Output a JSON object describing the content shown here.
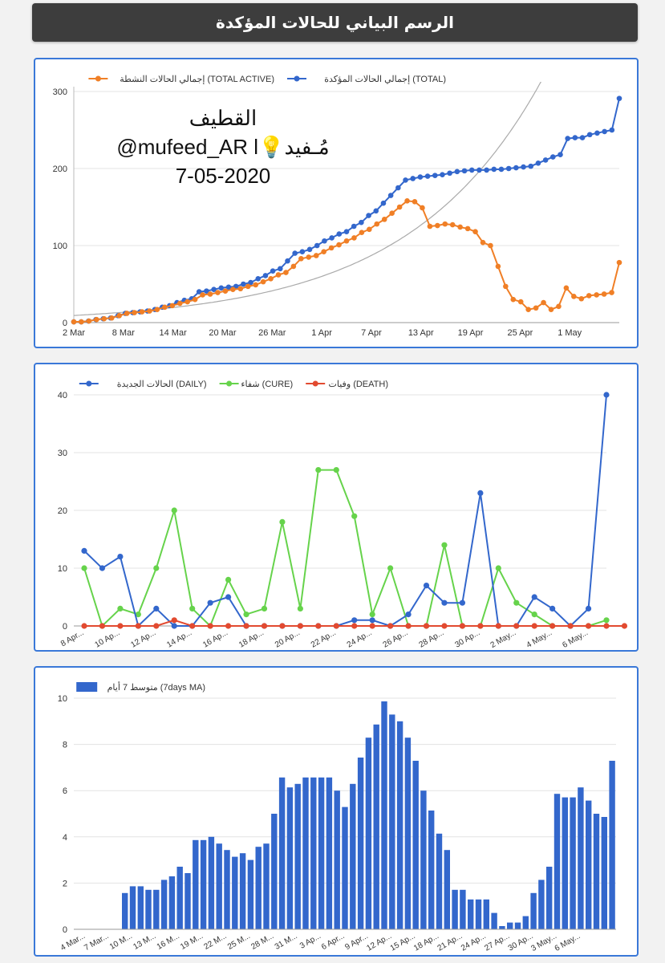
{
  "header": {
    "title": "الرسم البياني للحالات المؤكدة"
  },
  "watermark": {
    "city": "القطيف",
    "handle": "@mufeed_AR l💡مُـفيد",
    "date": "7-05-2020"
  },
  "colors": {
    "blue": "#3367cc",
    "orange": "#f07f26",
    "green": "#66d34b",
    "red": "#e24a30",
    "gridline": "#e3e3e3",
    "frame": "#3a78d8"
  },
  "chart_data": [
    {
      "type": "line",
      "legend": [
        {
          "label": "إجمالي الحالات المؤكدة (TOTAL)",
          "color": "#3367cc"
        },
        {
          "label": "إجمالي الحالات النشطة (TOTAL ACTIVE)",
          "color": "#f07f26"
        }
      ],
      "x_tick_labels": [
        "2 Mar",
        "8 Mar",
        "14 Mar",
        "20 Mar",
        "26 Mar",
        "1 Apr",
        "7 Apr",
        "13 Apr",
        "19 Apr",
        "25 Apr",
        "1 May"
      ],
      "y_ticks": [
        0,
        100,
        200,
        300
      ],
      "ylim": [
        0,
        300
      ],
      "xlim": [
        0,
        66
      ],
      "trend": "exponential",
      "series": [
        {
          "name": "TOTAL",
          "values": [
            1,
            1,
            2,
            4,
            5,
            6,
            9,
            12,
            13,
            14,
            15,
            17,
            20,
            22,
            26,
            29,
            31,
            40,
            41,
            43,
            45,
            46,
            47,
            50,
            52,
            57,
            61,
            67,
            70,
            80,
            90,
            92,
            95,
            100,
            106,
            110,
            115,
            118,
            125,
            130,
            139,
            145,
            155,
            165,
            175,
            185,
            187,
            189,
            190,
            191,
            192,
            194,
            196,
            197,
            198,
            198,
            198,
            199,
            199,
            200,
            201,
            202,
            203,
            207,
            211,
            215,
            218,
            239,
            240,
            240,
            244,
            246,
            248,
            250,
            291
          ]
        },
        {
          "name": "TOTAL ACTIVE",
          "values": [
            1,
            1,
            2,
            4,
            5,
            6,
            9,
            12,
            13,
            14,
            15,
            17,
            20,
            22,
            25,
            27,
            30,
            36,
            37,
            39,
            41,
            43,
            44,
            47,
            49,
            53,
            57,
            62,
            65,
            73,
            83,
            85,
            87,
            92,
            97,
            101,
            106,
            110,
            117,
            121,
            128,
            134,
            142,
            150,
            158,
            157,
            149,
            125,
            126,
            128,
            127,
            124,
            122,
            118,
            104,
            100,
            73,
            47,
            30,
            27,
            17,
            19,
            26,
            17,
            21,
            45,
            34,
            31,
            35,
            36,
            37,
            39,
            78
          ]
        }
      ]
    },
    {
      "type": "line",
      "legend": [
        {
          "label": "وفيات (DEATH)",
          "color": "#e24a30"
        },
        {
          "label": "شفاء (CURE)",
          "color": "#66d34b"
        },
        {
          "label": "الحالات الجديدة (DAILY)",
          "color": "#3367cc"
        }
      ],
      "x_tick_labels": [
        "8 Apr...",
        "10 Ap...",
        "12 Ap...",
        "14 Ap...",
        "16 Ap...",
        "18 Ap...",
        "20 Ap...",
        "22 Ap...",
        "24 Ap...",
        "26 Ap...",
        "28 Ap...",
        "30 Ap...",
        "2 May...",
        "4 May...",
        "6 May..."
      ],
      "y_ticks": [
        0,
        10,
        20,
        30,
        40
      ],
      "ylim": [
        0,
        40
      ],
      "series": [
        {
          "name": "DEATH",
          "values": [
            0,
            0,
            0,
            0,
            0,
            1,
            0,
            0,
            0,
            0,
            0,
            0,
            0,
            0,
            0,
            0,
            0,
            0,
            0,
            0,
            0,
            0,
            0,
            0,
            0,
            0,
            0,
            0,
            0,
            0,
            0
          ]
        },
        {
          "name": "CURE",
          "values": [
            10,
            0,
            3,
            2,
            10,
            20,
            3,
            0,
            8,
            2,
            3,
            18,
            3,
            27,
            27,
            19,
            2,
            10,
            0,
            0,
            14,
            0,
            0,
            10,
            4,
            2,
            0,
            0,
            0,
            1
          ]
        },
        {
          "name": "DAILY",
          "values": [
            13,
            10,
            12,
            0,
            3,
            0,
            0,
            4,
            5,
            0,
            0,
            0,
            0,
            0,
            0,
            1,
            1,
            0,
            2,
            7,
            4,
            4,
            23,
            0,
            0,
            5,
            3,
            0,
            3,
            40
          ]
        }
      ]
    },
    {
      "type": "bar",
      "legend": [
        {
          "label": "متوسط 7 أيام (7days MA)",
          "color": "#3367cc"
        }
      ],
      "x_tick_labels": [
        "4 Mar...",
        "7 Mar...",
        "10 M...",
        "13 M...",
        "16 M...",
        "19 M...",
        "22 M...",
        "25 M...",
        "28 M...",
        "31 M...",
        "3 Ap...",
        "6 Apr...",
        "9 Apr...",
        "12 Ap...",
        "15 Ap...",
        "18 Ap...",
        "21 Ap...",
        "24 Ap...",
        "27 Ap...",
        "30 Ap...",
        "3 May...",
        "6 May..."
      ],
      "y_ticks": [
        0,
        2,
        4,
        6,
        8,
        10
      ],
      "ylim": [
        0,
        10
      ],
      "values": [
        0,
        0,
        0,
        0,
        0,
        0,
        1.57,
        1.86,
        1.86,
        1.71,
        1.71,
        2.14,
        2.29,
        2.71,
        2.43,
        3.86,
        3.86,
        4.0,
        3.71,
        3.43,
        3.14,
        3.29,
        3.0,
        3.57,
        3.71,
        5.0,
        6.57,
        6.14,
        6.29,
        6.57,
        6.57,
        6.57,
        6.57,
        6.0,
        5.29,
        6.29,
        7.43,
        8.29,
        8.86,
        9.86,
        9.29,
        9.0,
        8.29,
        7.29,
        6.0,
        5.14,
        4.14,
        3.43,
        1.71,
        1.71,
        1.29,
        1.29,
        1.29,
        0.71,
        0.14,
        0.29,
        0.29,
        0.57,
        1.57,
        2.14,
        2.71,
        5.86,
        5.71,
        5.71,
        6.14,
        5.57,
        5.0,
        4.86,
        7.29
      ]
    }
  ]
}
